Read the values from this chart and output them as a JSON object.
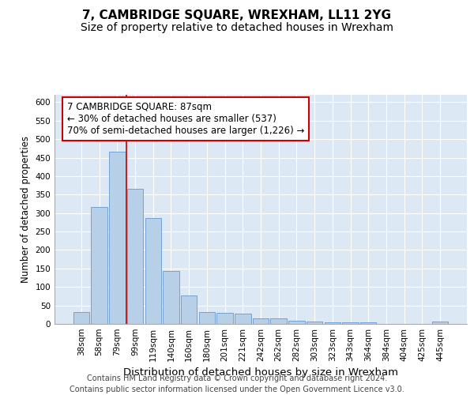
{
  "title": "7, CAMBRIDGE SQUARE, WREXHAM, LL11 2YG",
  "subtitle": "Size of property relative to detached houses in Wrexham",
  "xlabel": "Distribution of detached houses by size in Wrexham",
  "ylabel": "Number of detached properties",
  "footer_line1": "Contains HM Land Registry data © Crown copyright and database right 2024.",
  "footer_line2": "Contains public sector information licensed under the Open Government Licence v3.0.",
  "categories": [
    "38sqm",
    "58sqm",
    "79sqm",
    "99sqm",
    "119sqm",
    "140sqm",
    "160sqm",
    "180sqm",
    "201sqm",
    "221sqm",
    "242sqm",
    "262sqm",
    "282sqm",
    "303sqm",
    "323sqm",
    "343sqm",
    "364sqm",
    "384sqm",
    "404sqm",
    "425sqm",
    "445sqm"
  ],
  "values": [
    32,
    317,
    466,
    366,
    286,
    143,
    76,
    32,
    29,
    27,
    16,
    16,
    8,
    7,
    5,
    5,
    5,
    0,
    0,
    0,
    6
  ],
  "bar_color": "#b8cfe8",
  "bar_edgecolor": "#6699cc",
  "annotation_text": "7 CAMBRIDGE SQUARE: 87sqm\n← 30% of detached houses are smaller (537)\n70% of semi-detached houses are larger (1,226) →",
  "annotation_box_color": "#ffffff",
  "annotation_box_edgecolor": "#cc0000",
  "red_line_x": 2.5,
  "ylim": [
    0,
    620
  ],
  "yticks": [
    0,
    50,
    100,
    150,
    200,
    250,
    300,
    350,
    400,
    450,
    500,
    550,
    600
  ],
  "background_color": "#dde8f5",
  "grid_color": "#ffffff",
  "title_fontsize": 11,
  "subtitle_fontsize": 10,
  "xlabel_fontsize": 9.5,
  "ylabel_fontsize": 8.5,
  "tick_fontsize": 7.5,
  "annotation_fontsize": 8.5,
  "footer_fontsize": 7
}
